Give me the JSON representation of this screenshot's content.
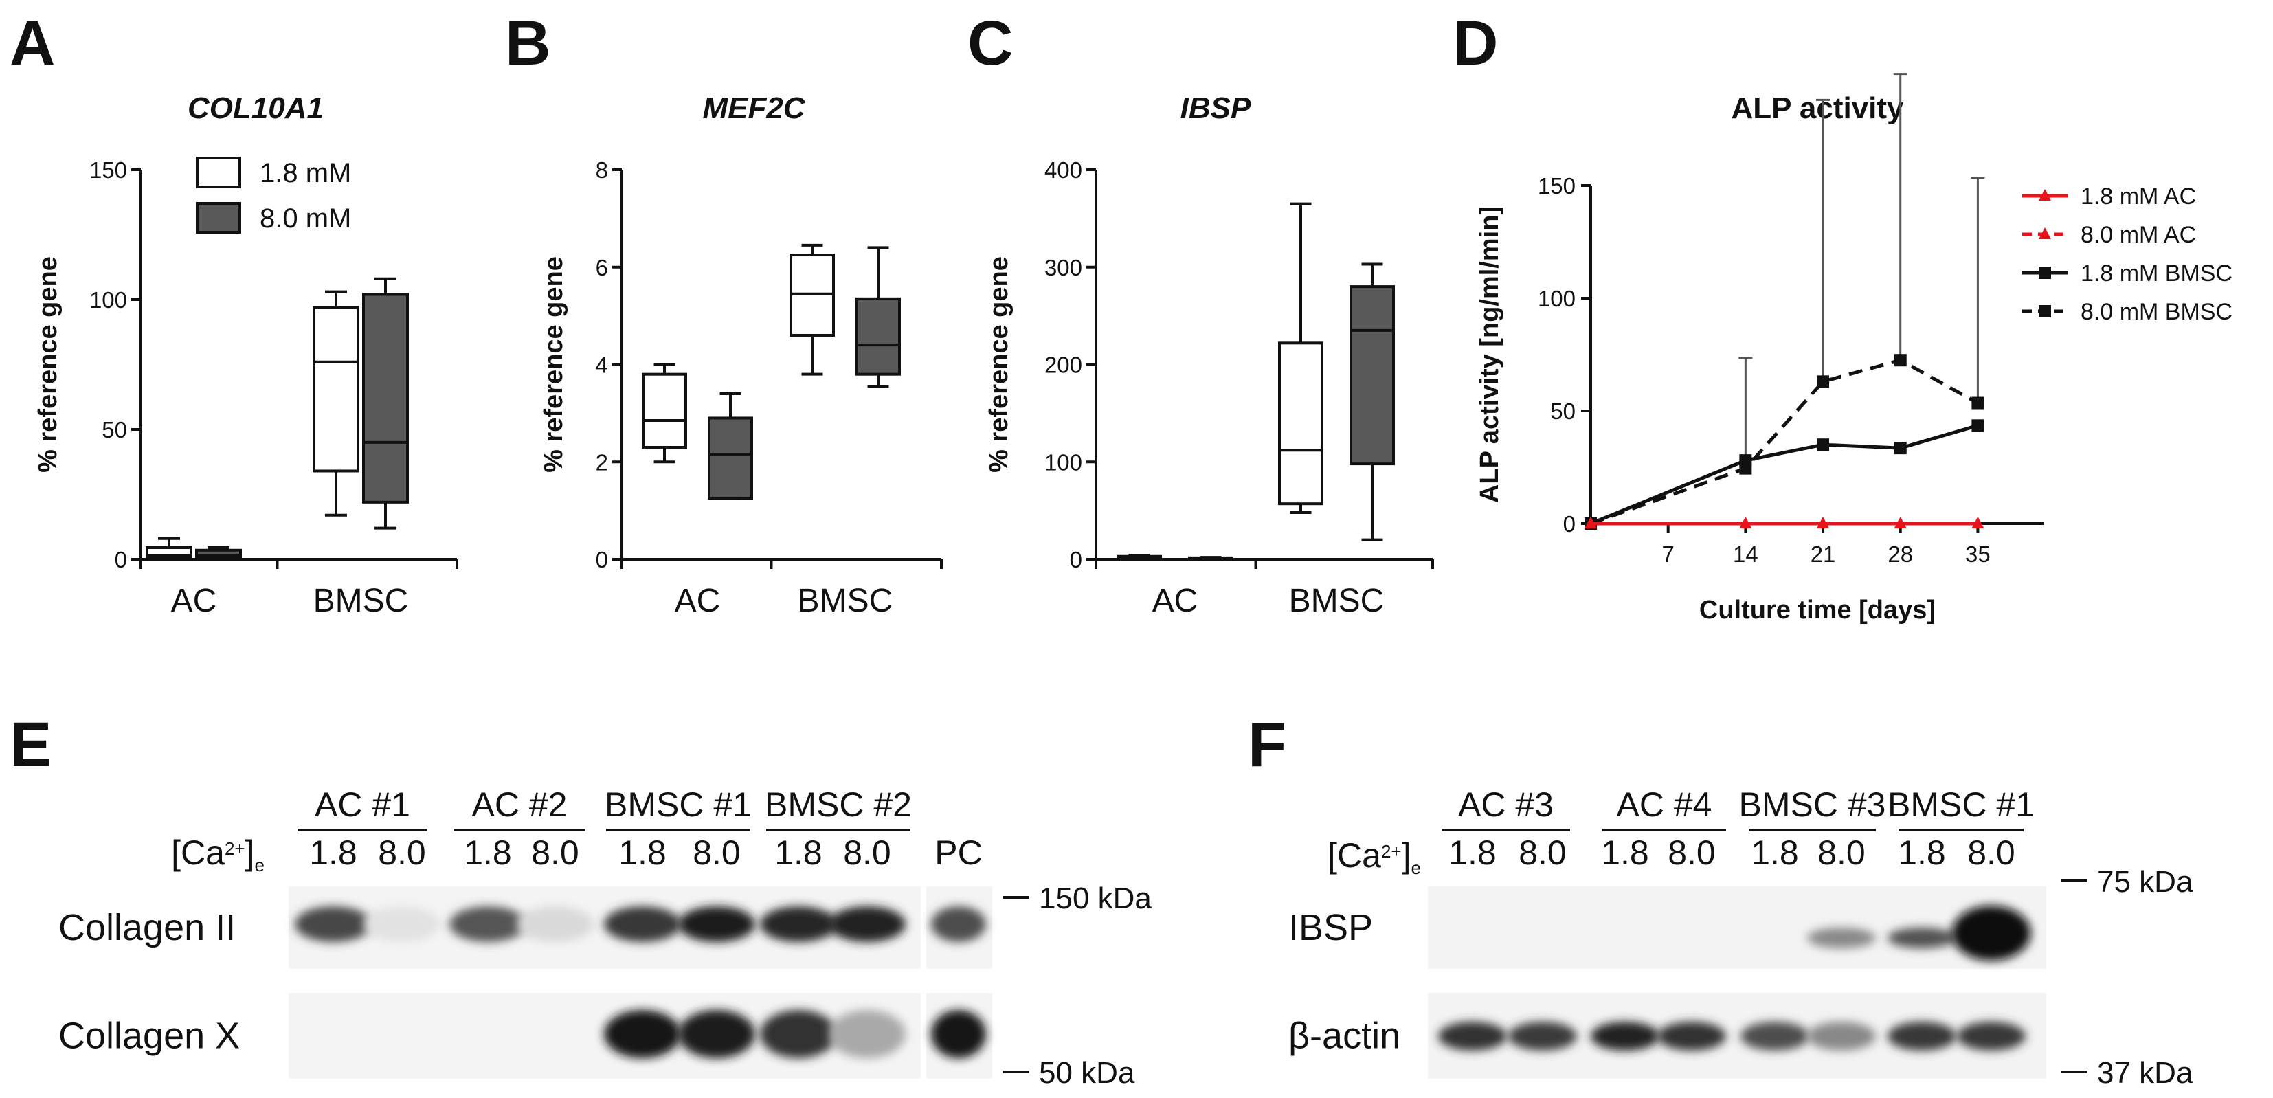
{
  "panels": {
    "A": "A",
    "B": "B",
    "C": "C",
    "D": "D",
    "E": "E",
    "F": "F"
  },
  "chart_data": [
    {
      "panel": "A",
      "type": "box",
      "title": "COL10A1",
      "ylabel": "% reference gene",
      "ylim": [
        0,
        150
      ],
      "yticks": [
        0,
        50,
        100,
        150
      ],
      "categories": [
        "AC",
        "BMSC"
      ],
      "series": [
        {
          "name": "1.8 mM",
          "color": "#ffffff",
          "boxes": [
            {
              "min": 0.5,
              "q1": 0.8,
              "median": 1.5,
              "q3": 4.5,
              "max": 8
            },
            {
              "min": 17,
              "q1": 34,
              "median": 76,
              "q3": 97,
              "max": 103
            }
          ]
        },
        {
          "name": "8.0 mM",
          "color": "#595959",
          "boxes": [
            {
              "min": 0.5,
              "q1": 0.8,
              "median": 1.5,
              "q3": 3.5,
              "max": 4.5
            },
            {
              "min": 12,
              "q1": 22,
              "median": 45,
              "q3": 102,
              "max": 108
            }
          ]
        }
      ]
    },
    {
      "panel": "B",
      "type": "box",
      "title": "MEF2C",
      "ylabel": "% reference gene",
      "ylim": [
        0,
        8
      ],
      "yticks": [
        0,
        2,
        4,
        6,
        8
      ],
      "categories": [
        "AC",
        "BMSC"
      ],
      "series": [
        {
          "name": "1.8 mM",
          "color": "#ffffff",
          "boxes": [
            {
              "min": 2.0,
              "q1": 2.3,
              "median": 2.85,
              "q3": 3.8,
              "max": 4.0
            },
            {
              "min": 3.8,
              "q1": 4.6,
              "median": 5.45,
              "q3": 6.25,
              "max": 6.45
            }
          ]
        },
        {
          "name": "8.0 mM",
          "color": "#595959",
          "boxes": [
            {
              "min": 1.25,
              "q1": 1.25,
              "median": 2.15,
              "q3": 2.9,
              "max": 3.4
            },
            {
              "min": 3.55,
              "q1": 3.8,
              "median": 4.4,
              "q3": 5.35,
              "max": 6.4
            }
          ]
        }
      ]
    },
    {
      "panel": "C",
      "type": "box",
      "title": "IBSP",
      "ylabel": "% reference gene",
      "ylim": [
        0,
        400
      ],
      "yticks": [
        0,
        100,
        200,
        300,
        400
      ],
      "categories": [
        "AC",
        "BMSC"
      ],
      "series": [
        {
          "name": "1.8 mM",
          "color": "#ffffff",
          "boxes": [
            {
              "min": 0.5,
              "q1": 1,
              "median": 2,
              "q3": 3,
              "max": 4
            },
            {
              "min": 48,
              "q1": 57,
              "median": 112,
              "q3": 222,
              "max": 365
            }
          ]
        },
        {
          "name": "8.0 mM",
          "color": "#595959",
          "boxes": [
            {
              "min": 0.2,
              "q1": 0.5,
              "median": 1,
              "q3": 1.5,
              "max": 2
            },
            {
              "min": 20,
              "q1": 98,
              "median": 235,
              "q3": 280,
              "max": 303
            }
          ]
        }
      ]
    },
    {
      "panel": "D",
      "type": "line",
      "title": "ALP activity",
      "xlabel": "Culture time [days]",
      "ylabel": "ALP activity [ng/ml/min]",
      "xlim": [
        0,
        41
      ],
      "ylim": [
        0,
        150
      ],
      "xticks": [
        7,
        14,
        21,
        28,
        35
      ],
      "yticks": [
        0,
        50,
        100,
        150
      ],
      "legend": "right",
      "series": [
        {
          "name": "1.8 mM AC",
          "color": "#e8141b",
          "dash": false,
          "marker": "triangle",
          "x": [
            0,
            14,
            21,
            28,
            35
          ],
          "y": [
            0,
            0,
            0,
            0,
            0
          ]
        },
        {
          "name": "8.0 mM AC",
          "color": "#e8141b",
          "dash": true,
          "marker": "triangle",
          "x": [
            0,
            14,
            21,
            28,
            35
          ],
          "y": [
            0,
            0,
            0,
            0,
            0
          ]
        },
        {
          "name": "1.8 mM BMSC",
          "color": "#111111",
          "dash": false,
          "marker": "square",
          "x": [
            0,
            14,
            21,
            28,
            35
          ],
          "y": [
            0,
            28,
            35,
            33.5,
            43.5
          ],
          "err": [
            0,
            0,
            0,
            0,
            0
          ]
        },
        {
          "name": "8.0 mM BMSC",
          "color": "#111111",
          "dash": true,
          "marker": "square",
          "x": [
            0,
            14,
            21,
            28,
            35
          ],
          "y": [
            0,
            24.5,
            63,
            72.5,
            53.5
          ],
          "err": [
            0,
            49,
            125,
            127,
            100
          ]
        }
      ]
    }
  ],
  "blots": {
    "E": {
      "conc_label": "[Ca2+]e",
      "groups": [
        "AC #1",
        "AC #2",
        "BMSC #1",
        "BMSC #2"
      ],
      "concentrations": [
        "1.8",
        "8.0"
      ],
      "pc_label": "PC",
      "rows": [
        "Collagen II",
        "Collagen X"
      ],
      "markers": [
        "150 kDa",
        "50 kDa"
      ],
      "band_intensity": [
        [
          0.75,
          0.04,
          0.68,
          0.08,
          0.82,
          0.95,
          0.9,
          0.92,
          0.72
        ],
        [
          0.0,
          0.0,
          0.0,
          0.0,
          0.98,
          0.95,
          0.85,
          0.3,
          0.97
        ]
      ]
    },
    "F": {
      "conc_label": "[Ca2+]e",
      "groups": [
        "AC #3",
        "AC #4",
        "BMSC #3",
        "BMSC #1"
      ],
      "concentrations": [
        "1.8",
        "8.0"
      ],
      "rows": [
        "IBSP",
        "β-actin"
      ],
      "markers": [
        "75 kDa",
        "37 kDa"
      ],
      "band_intensity": [
        [
          0.0,
          0.0,
          0.0,
          0.0,
          0.0,
          0.45,
          0.7,
          1.0
        ],
        [
          0.85,
          0.8,
          0.92,
          0.85,
          0.72,
          0.45,
          0.82,
          0.82
        ]
      ]
    }
  }
}
